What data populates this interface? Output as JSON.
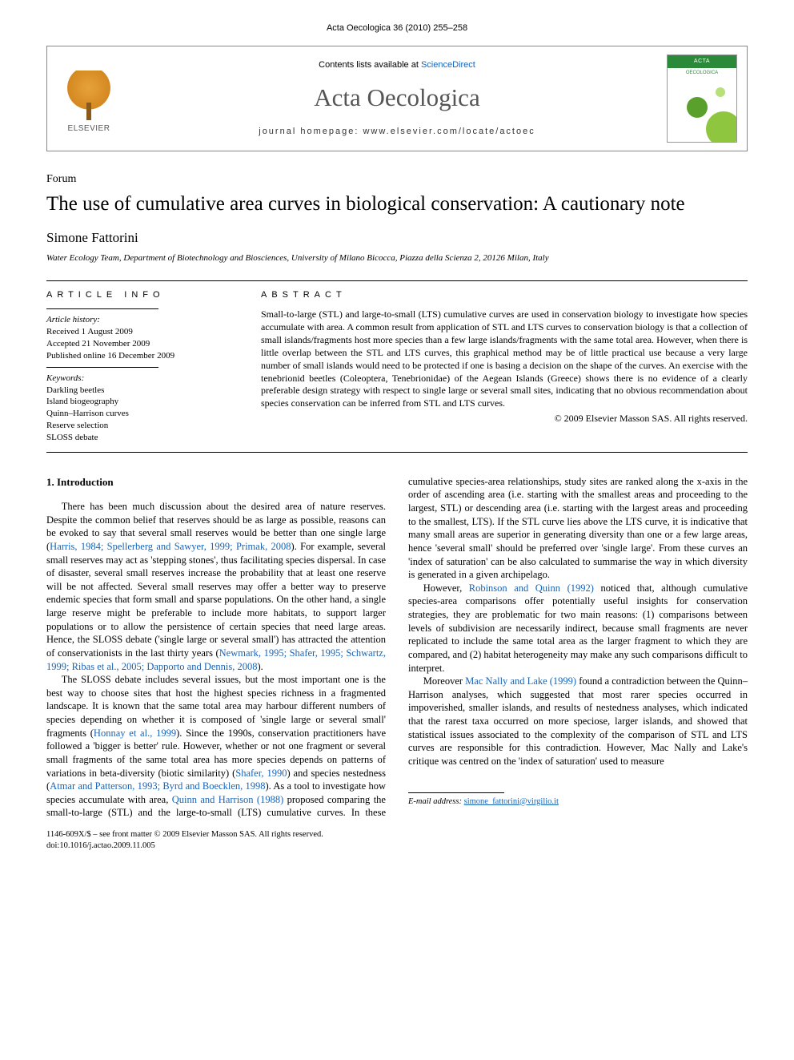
{
  "header": {
    "citation": "Acta Oecologica 36 (2010) 255–258"
  },
  "masthead": {
    "publisher_logo_text": "ELSEVIER",
    "contents_prefix": "Contents lists available at ",
    "contents_link": "ScienceDirect",
    "journal_name": "Acta Oecologica",
    "homepage_prefix": "journal homepage: ",
    "homepage_url": "www.elsevier.com/locate/actoec",
    "cover_title": "ACTA",
    "cover_subtitle": "OECOLOGICA"
  },
  "article": {
    "section_label": "Forum",
    "title": "The use of cumulative area curves in biological conservation: A cautionary note",
    "author": "Simone Fattorini",
    "affiliation": "Water Ecology Team, Department of Biotechnology and Biosciences, University of Milano Bicocca, Piazza della Scienza 2, 20126 Milan, Italy"
  },
  "article_info": {
    "heading": "ARTICLE INFO",
    "history_label": "Article history:",
    "history": [
      "Received 1 August 2009",
      "Accepted 21 November 2009",
      "Published online 16 December 2009"
    ],
    "keywords_label": "Keywords:",
    "keywords": [
      "Darkling beetles",
      "Island biogeography",
      "Quinn–Harrison curves",
      "Reserve selection",
      "SLOSS debate"
    ]
  },
  "abstract": {
    "heading": "ABSTRACT",
    "text": "Small-to-large (STL) and large-to-small (LTS) cumulative curves are used in conservation biology to investigate how species accumulate with area. A common result from application of STL and LTS curves to conservation biology is that a collection of small islands/fragments host more species than a few large islands/fragments with the same total area. However, when there is little overlap between the STL and LTS curves, this graphical method may be of little practical use because a very large number of small islands would need to be protected if one is basing a decision on the shape of the curves. An exercise with the tenebrionid beetles (Coleoptera, Tenebrionidae) of the Aegean Islands (Greece) shows there is no evidence of a clearly preferable design strategy with respect to single large or several small sites, indicating that no obvious recommendation about species conservation can be inferred from STL and LTS curves.",
    "copyright": "© 2009 Elsevier Masson SAS. All rights reserved."
  },
  "body": {
    "section_number": "1.",
    "section_title": "Introduction",
    "p1a": "There has been much discussion about the desired area of nature reserves. Despite the common belief that reserves should be as large as possible, reasons can be evoked to say that several small reserves would be better than one single large (",
    "p1ref1": "Harris, 1984; Spellerberg and Sawyer, 1999; Primak, 2008",
    "p1b": "). For example, several small reserves may act as 'stepping stones', thus facilitating species dispersal. In case of disaster, several small reserves increase the probability that at least one reserve will be not affected. Several small reserves may offer a better way to preserve endemic species that form small and sparse populations. On the other hand, a single large reserve might be preferable to include more habitats, to support larger populations or to allow the persistence of certain species that need large areas. Hence, the SLOSS debate ('single large or several small') has attracted the attention of conservationists in the last thirty years (",
    "p1ref2": "Newmark, 1995; Shafer, 1995; Schwartz, 1999; Ribas et al., 2005; Dapporto and Dennis, 2008",
    "p1c": ").",
    "p2a": "The SLOSS debate includes several issues, but the most important one is the best way to choose sites that host the highest species richness in a fragmented landscape. It is known that the same total area may harbour different numbers of species depending on whether it is composed of 'single large or several small' fragments (",
    "p2ref1": "Honnay et al., 1999",
    "p2b": "). Since the 1990s, conservation practitioners have followed a 'bigger is better' rule. However, whether or not one fragment or several small fragments of the same total area has more species depends on patterns of variations in beta-diversity (biotic ",
    "p2c": "similarity) (",
    "p2ref2": "Shafer, 1990",
    "p2d": ") and species nestedness (",
    "p2ref3": "Atmar and Patterson, 1993; Byrd and Boecklen, 1998",
    "p2e": "). As a tool to investigate how species accumulate with area, ",
    "p2ref4": "Quinn and Harrison (1988)",
    "p2f": " proposed comparing the small-to-large (STL) and the large-to-small (LTS) cumulative curves. In these cumulative species-area relationships, study sites are ranked along the x-axis in the order of ascending area (i.e. starting with the smallest areas and proceeding to the largest, STL) or descending area (i.e. starting with the largest areas and proceeding to the smallest, LTS). If the STL curve lies above the LTS curve, it is indicative that many small areas are superior in generating diversity than one or a few large areas, hence 'several small' should be preferred over 'single large'. From these curves an 'index of saturation' can be also calculated to summarise the way in which diversity is generated in a given archipelago.",
    "p3a": "However, ",
    "p3ref1": "Robinson and Quinn (1992)",
    "p3b": " noticed that, although cumulative species-area comparisons offer potentially useful insights for conservation strategies, they are problematic for two main reasons: (1) comparisons between levels of subdivision are necessarily indirect, because small fragments are never replicated to include the same total area as the larger fragment to which they are compared, and (2) habitat heterogeneity may make any such comparisons difficult to interpret.",
    "p4a": "Moreover ",
    "p4ref1": "Mac Nally and Lake (1999)",
    "p4b": " found a contradiction between the Quinn–Harrison analyses, which suggested that most rarer species occurred in impoverished, smaller islands, and results of nestedness analyses, which indicated that the rarest taxa occurred on more speciose, larger islands, and showed that statistical issues associated to the complexity of the comparison of STL and LTS curves are responsible for this contradiction. However, Mac Nally and Lake's critique was centred on the 'index of saturation' used to measure"
  },
  "footer": {
    "email_label": "E-mail address:",
    "email": "simone_fattorini@virgilio.it",
    "issn_line": "1146-609X/$ – see front matter © 2009 Elsevier Masson SAS. All rights reserved.",
    "doi_line": "doi:10.1016/j.actao.2009.11.005"
  },
  "colors": {
    "link": "#1864b7",
    "text": "#000000",
    "muted": "#555555"
  }
}
